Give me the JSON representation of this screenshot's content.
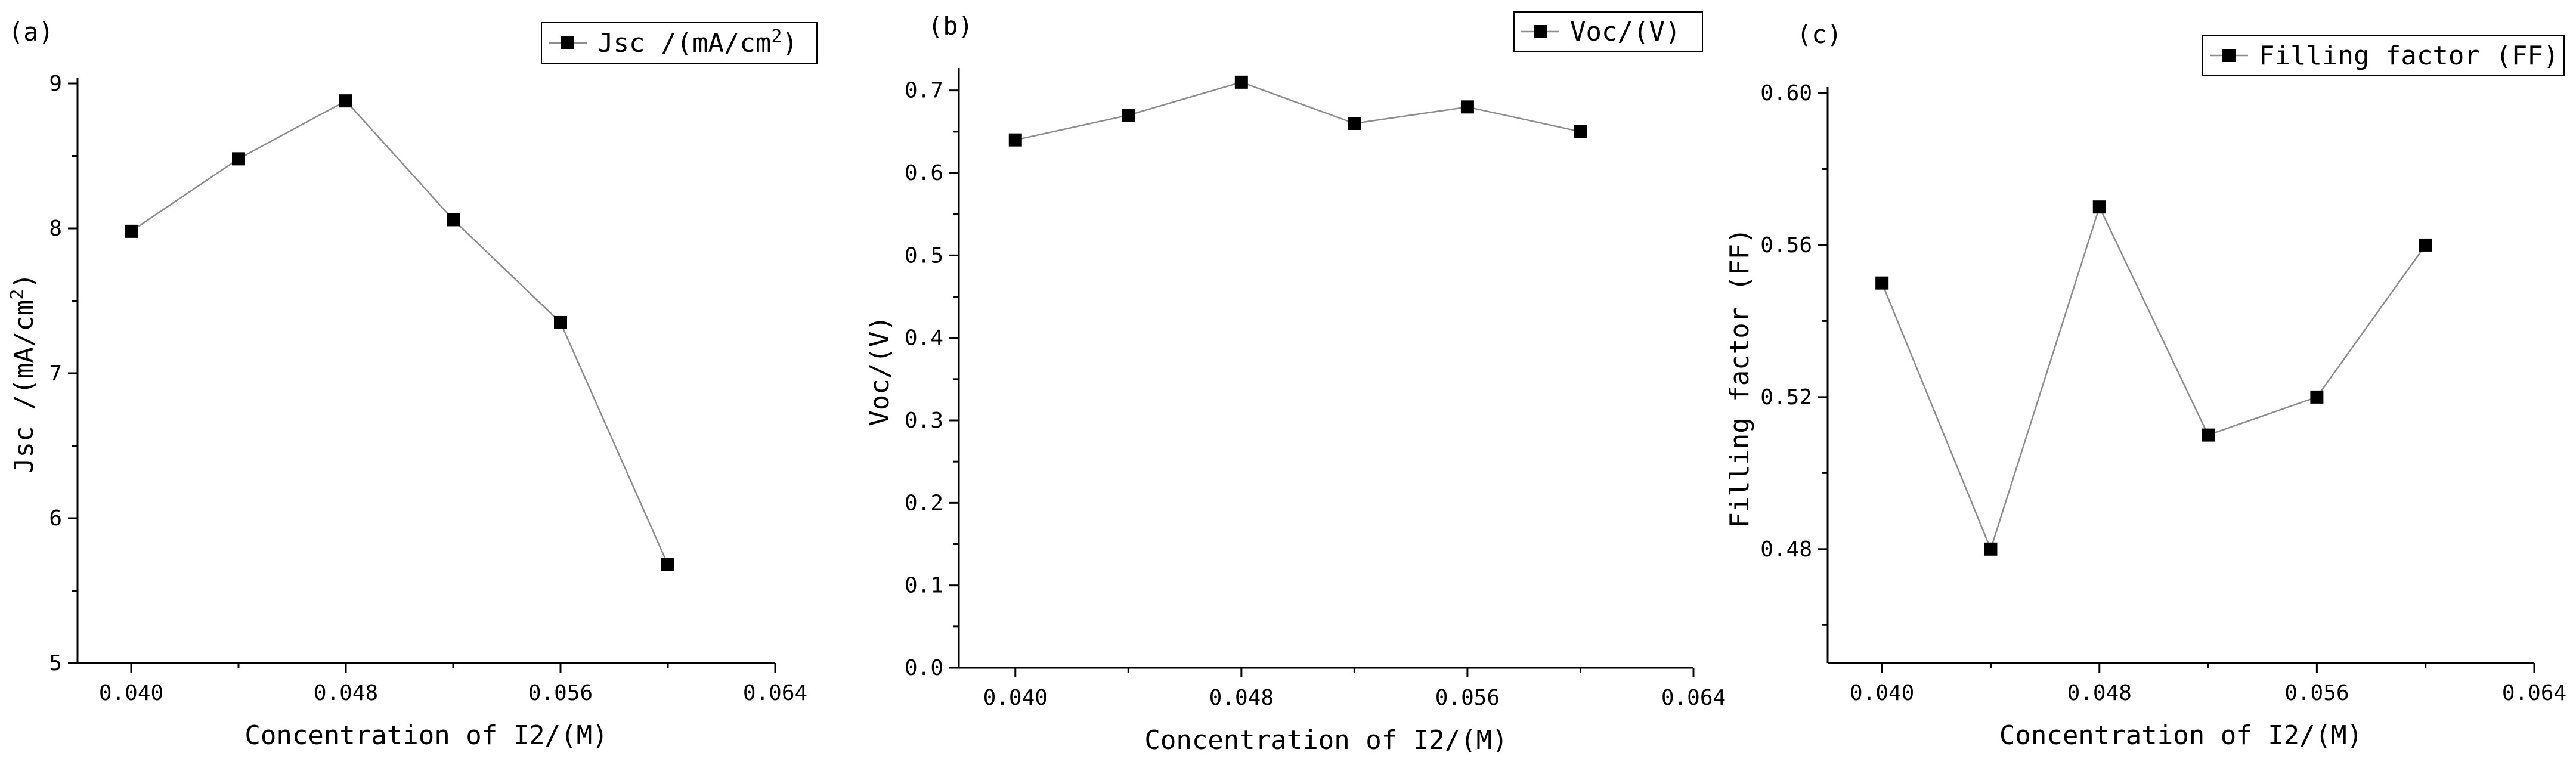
{
  "figure": {
    "background": "#ffffff",
    "marker_color": "#000000",
    "line_color": "#8c8c8c"
  },
  "chart_data": [
    {
      "type": "line",
      "panel_label": "(a)",
      "title": "",
      "xlabel": "Concentration of I2/(M)",
      "ylabel_main": "Jsc /(mA/cm",
      "ylabel_sup": "2",
      "ylabel_tail": ")",
      "legend": {
        "marker_name": "Jsc /(mA/cm",
        "sup": "2",
        "tail": ")",
        "placement": "top-right"
      },
      "x": [
        0.04,
        0.044,
        0.048,
        0.052,
        0.056,
        0.06
      ],
      "y": [
        7.98,
        8.48,
        8.88,
        8.06,
        7.35,
        5.68
      ],
      "xlim": [
        0.038,
        0.064
      ],
      "ylim": [
        5,
        9
      ],
      "x_major_ticks": [
        0.04,
        0.048,
        0.056,
        0.064
      ],
      "x_tick_labels": [
        "0.040",
        "0.048",
        "0.056",
        "0.064"
      ],
      "x_minor_ticks": [
        0.044,
        0.052,
        0.06
      ],
      "y_major_ticks": [
        5,
        6,
        7,
        8,
        9
      ],
      "y_tick_labels": [
        "5",
        "6",
        "7",
        "8",
        "9"
      ],
      "y_minor_ticks": [
        5.5,
        6.5,
        7.5,
        8.5
      ]
    },
    {
      "type": "line",
      "panel_label": "(b)",
      "title": "",
      "xlabel": "Concentration of I2/(M)",
      "ylabel_main": "Voc/(V)",
      "ylabel_sup": "",
      "ylabel_tail": "",
      "legend": {
        "marker_name": "Voc/(V)",
        "sup": "",
        "tail": "",
        "placement": "top-right"
      },
      "x": [
        0.04,
        0.044,
        0.048,
        0.052,
        0.056,
        0.06
      ],
      "y": [
        0.64,
        0.67,
        0.71,
        0.66,
        0.68,
        0.65
      ],
      "xlim": [
        0.038,
        0.064
      ],
      "ylim": [
        0.0,
        0.72
      ],
      "x_major_ticks": [
        0.04,
        0.048,
        0.056,
        0.064
      ],
      "x_tick_labels": [
        "0.040",
        "0.048",
        "0.056",
        "0.064"
      ],
      "x_minor_ticks": [
        0.044,
        0.052,
        0.06
      ],
      "y_major_ticks": [
        0.0,
        0.1,
        0.2,
        0.3,
        0.4,
        0.5,
        0.6,
        0.7
      ],
      "y_tick_labels": [
        "0.0",
        "0.1",
        "0.2",
        "0.3",
        "0.4",
        "0.5",
        "0.6",
        "0.7"
      ],
      "y_minor_ticks": [
        0.05,
        0.15,
        0.25,
        0.35,
        0.45,
        0.55,
        0.65
      ]
    },
    {
      "type": "line",
      "panel_label": "(c)",
      "title": "",
      "xlabel": "Concentration of I2/(M)",
      "ylabel_main": "Filling factor (FF)",
      "ylabel_sup": "",
      "ylabel_tail": "",
      "legend": {
        "marker_name": "Filling factor (FF)",
        "sup": "",
        "tail": "",
        "placement": "top-right"
      },
      "x": [
        0.04,
        0.044,
        0.048,
        0.052,
        0.056,
        0.06
      ],
      "y": [
        0.55,
        0.48,
        0.57,
        0.51,
        0.52,
        0.56
      ],
      "xlim": [
        0.038,
        0.064
      ],
      "ylim": [
        0.45,
        0.6
      ],
      "x_major_ticks": [
        0.04,
        0.048,
        0.056,
        0.064
      ],
      "x_tick_labels": [
        "0.040",
        "0.048",
        "0.056",
        "0.064"
      ],
      "x_minor_ticks": [
        0.044,
        0.052,
        0.06
      ],
      "y_major_ticks": [
        0.48,
        0.52,
        0.56,
        0.6
      ],
      "y_tick_labels": [
        "0.48",
        "0.52",
        "0.56",
        "0.60"
      ],
      "y_minor_ticks": [
        0.46,
        0.5,
        0.54,
        0.58
      ]
    }
  ]
}
